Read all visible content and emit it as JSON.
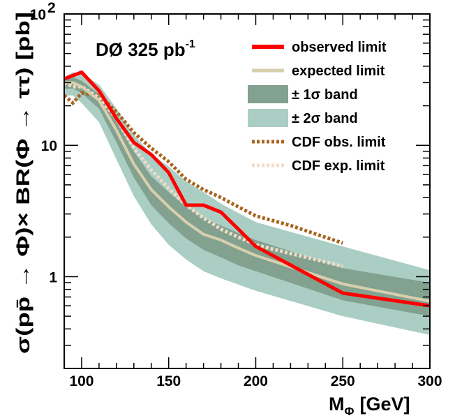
{
  "chart_data": {
    "type": "line",
    "title": "DØ 325 pb",
    "title_superscript": "-1",
    "xlabel": "M",
    "xlabel_subscript": "Φ",
    "xlabel_unit": "[GeV]",
    "ylabel": "σ(pp̄ → Φ)× BR(Φ → ττ) [pb]",
    "x_tick_labels": [
      "100",
      "150",
      "200",
      "250",
      "300"
    ],
    "x_ticks": [
      100,
      150,
      200,
      250,
      300
    ],
    "y_tick_labels": [
      "1",
      "10"
    ],
    "y_ticks": [
      1,
      10
    ],
    "y_top_label": "10",
    "y_top_label_exp": "2",
    "xlim": [
      90,
      300
    ],
    "ylim": [
      0.2,
      100
    ],
    "yscale": "log",
    "grid": false,
    "legend_position": "top-right",
    "x": [
      90,
      95,
      100,
      110,
      120,
      130,
      140,
      150,
      160,
      170,
      180,
      190,
      200,
      250,
      300
    ],
    "series": [
      {
        "name": "observed limit",
        "color": "#ff0000",
        "values": [
          32,
          34,
          36,
          26,
          16,
          10.5,
          8.5,
          6.2,
          3.5,
          3.5,
          3.1,
          2.3,
          1.7,
          0.75,
          0.6
        ]
      },
      {
        "name": "expected limit",
        "color": "#d8cfae",
        "values": [
          30,
          30,
          28,
          22,
          13,
          7.2,
          4.6,
          3.4,
          2.6,
          2.1,
          1.9,
          1.65,
          1.45,
          0.88,
          0.65
        ]
      },
      {
        "name": "± 1σ band",
        "color": "#82a18f",
        "lower": [
          27,
          27,
          25,
          19,
          10.5,
          5.7,
          3.5,
          2.55,
          1.95,
          1.6,
          1.4,
          1.22,
          1.1,
          0.66,
          0.5
        ],
        "upper": [
          32,
          33,
          31,
          24.5,
          15,
          9,
          5.8,
          4.4,
          3.4,
          2.8,
          2.45,
          2.15,
          1.9,
          1.16,
          0.9
        ]
      },
      {
        "name": "± 2σ band",
        "color": "#aacec4",
        "lower": [
          24,
          24,
          21,
          15,
          7.8,
          4.1,
          2.5,
          1.75,
          1.35,
          1.1,
          0.97,
          0.87,
          0.78,
          0.5,
          0.36
        ]
      },
      {
        "name": "CDF obs. limit",
        "color": "#a8641c",
        "x": [
          90,
          95,
          100,
          110,
          120,
          130,
          140,
          150,
          160,
          170,
          180,
          190,
          200,
          220,
          250
        ],
        "values": [
          24,
          21,
          25,
          24,
          18,
          12.5,
          9.5,
          7.5,
          5.5,
          4.6,
          4.0,
          3.4,
          2.9,
          2.45,
          1.8
        ]
      },
      {
        "name": "CDF exp. limit",
        "color": "#f1dcc7",
        "x": [
          90,
          95,
          100,
          110,
          120,
          130,
          140,
          150,
          160,
          170,
          180,
          190,
          200,
          220,
          250
        ],
        "values": [
          30,
          28,
          28,
          23,
          16,
          9.5,
          6.5,
          4.7,
          3.5,
          2.8,
          2.3,
          2.0,
          1.75,
          1.5,
          1.2
        ]
      }
    ],
    "band2_upper": [
      33,
      36,
      35,
      29,
      19,
      12,
      8.6,
      6.9,
      5.3,
      4.4,
      3.6,
      3.05,
      2.6,
      1.7,
      1.12
    ]
  }
}
